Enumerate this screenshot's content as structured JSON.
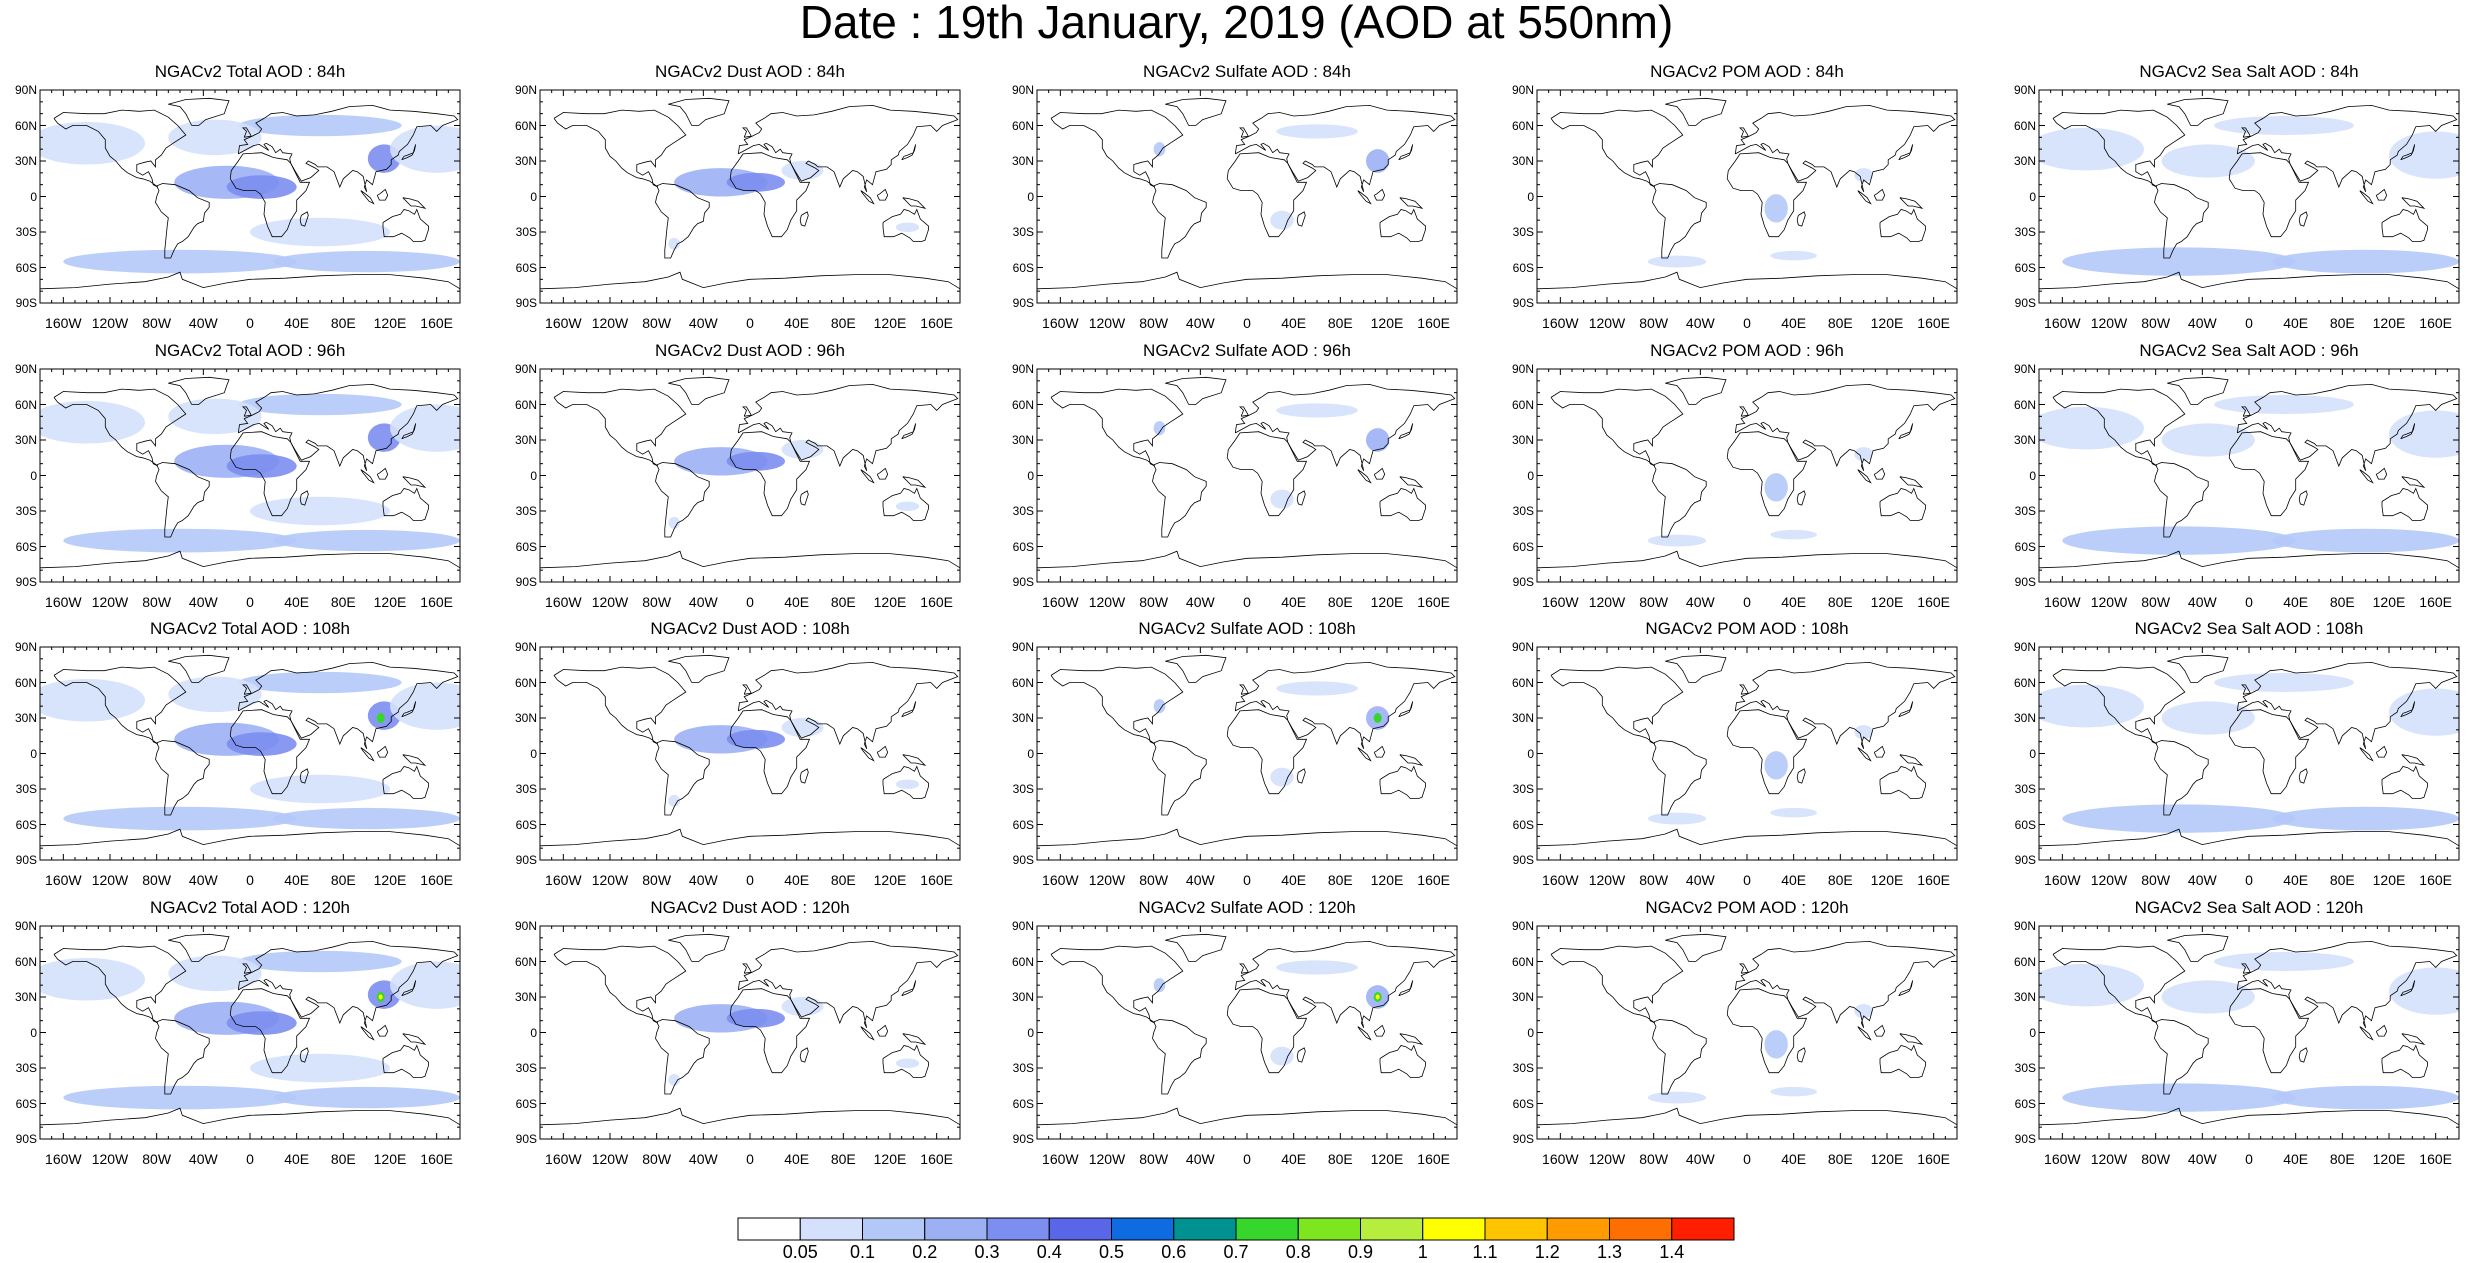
{
  "title": "Date : 19th January, 2019 (AOD at 550nm)",
  "lat_labels": [
    "90N",
    "60N",
    "30N",
    "0",
    "30S",
    "60S",
    "90S"
  ],
  "lon_labels": [
    "160W",
    "120W",
    "80W",
    "40W",
    "0",
    "40E",
    "80E",
    "120E",
    "160E"
  ],
  "lon_values": [
    -160,
    -120,
    -80,
    -40,
    0,
    40,
    80,
    120,
    160
  ],
  "lat_values": [
    90,
    60,
    30,
    0,
    -30,
    -60,
    -90
  ],
  "panels": [
    {
      "title": "NGACv2 Total AOD : 84h",
      "species": "total",
      "row": 0,
      "col": 0
    },
    {
      "title": "NGACv2 Dust AOD : 84h",
      "species": "dust",
      "row": 0,
      "col": 1
    },
    {
      "title": "NGACv2 Sulfate AOD : 84h",
      "species": "sulfate",
      "row": 0,
      "col": 2
    },
    {
      "title": "NGACv2 POM AOD : 84h",
      "species": "pom",
      "row": 0,
      "col": 3
    },
    {
      "title": "NGACv2 Sea Salt AOD : 84h",
      "species": "seasalt",
      "row": 0,
      "col": 4
    },
    {
      "title": "NGACv2 Total AOD : 96h",
      "species": "total",
      "row": 1,
      "col": 0
    },
    {
      "title": "NGACv2 Dust AOD : 96h",
      "species": "dust",
      "row": 1,
      "col": 1
    },
    {
      "title": "NGACv2 Sulfate AOD : 96h",
      "species": "sulfate",
      "row": 1,
      "col": 2
    },
    {
      "title": "NGACv2 POM AOD : 96h",
      "species": "pom",
      "row": 1,
      "col": 3
    },
    {
      "title": "NGACv2 Sea Salt AOD : 96h",
      "species": "seasalt",
      "row": 1,
      "col": 4
    },
    {
      "title": "NGACv2 Total AOD : 108h",
      "species": "total",
      "row": 2,
      "col": 0
    },
    {
      "title": "NGACv2 Dust AOD : 108h",
      "species": "dust",
      "row": 2,
      "col": 1
    },
    {
      "title": "NGACv2 Sulfate AOD : 108h",
      "species": "sulfate",
      "row": 2,
      "col": 2
    },
    {
      "title": "NGACv2 POM AOD : 108h",
      "species": "pom",
      "row": 2,
      "col": 3
    },
    {
      "title": "NGACv2 Sea Salt AOD : 108h",
      "species": "seasalt",
      "row": 2,
      "col": 4
    },
    {
      "title": "NGACv2 Total AOD : 120h",
      "species": "total",
      "row": 3,
      "col": 0
    },
    {
      "title": "NGACv2 Dust AOD : 120h",
      "species": "dust",
      "row": 3,
      "col": 1
    },
    {
      "title": "NGACv2 Sulfate AOD : 120h",
      "species": "sulfate",
      "row": 3,
      "col": 2
    },
    {
      "title": "NGACv2 POM AOD : 120h",
      "species": "pom",
      "row": 3,
      "col": 3
    },
    {
      "title": "NGACv2 Sea Salt  AOD : 120h",
      "species": "seasalt",
      "row": 3,
      "col": 4
    }
  ],
  "colorbar": {
    "labels": [
      "0.05",
      "0.1",
      "0.2",
      "0.3",
      "0.4",
      "0.5",
      "0.6",
      "0.7",
      "0.8",
      "0.9",
      "1",
      "1.1",
      "1.2",
      "1.3",
      "1.4"
    ],
    "colors": [
      "#ffffff",
      "#d4e0fc",
      "#b4c8f8",
      "#9cb0f4",
      "#7c8ef0",
      "#5a66e8",
      "#0f6be0",
      "#009191",
      "#37d62d",
      "#7ee61e",
      "#b7ee3e",
      "#ffff00",
      "#ffc400",
      "#ff9a00",
      "#ff6e00",
      "#ff1e00"
    ]
  },
  "shade_colors": {
    "light": "#d4e0fc",
    "mid": "#b4c8f8",
    "strong": "#9cb0f4",
    "deep": "#7c8ef0",
    "hot1": "#37d62d",
    "hot2": "#ffff00",
    "hot3": "#0f6be0"
  }
}
